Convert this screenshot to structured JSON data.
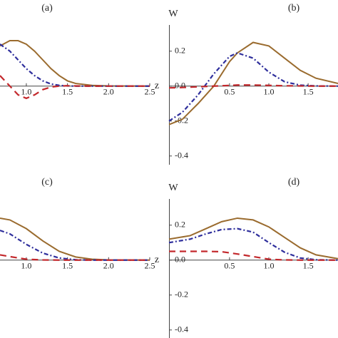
{
  "chart_data": [
    {
      "type": "line",
      "title": "(a)",
      "x_label": "z",
      "x": [
        0.68,
        0.8,
        0.9,
        1.0,
        1.1,
        1.2,
        1.3,
        1.4,
        1.5,
        1.6,
        1.8,
        2.0,
        2.5
      ],
      "xlim": [
        0.68,
        2.5
      ],
      "ylim": [
        -0.45,
        0.35
      ],
      "xticks": [
        {
          "value": 1,
          "label": "1.0"
        },
        1.5,
        {
          "value": 2,
          "label": "2.0"
        },
        2.5
      ],
      "series": [
        {
          "color": "#9a6b2e",
          "linestyle": "solid",
          "values": [
            0.23,
            0.26,
            0.26,
            0.24,
            0.2,
            0.15,
            0.1,
            0.06,
            0.03,
            0.015,
            0.004,
            0.001,
            0
          ]
        },
        {
          "color": "#2e2e9c",
          "linestyle": "dashdot",
          "values": [
            0.24,
            0.2,
            0.15,
            0.1,
            0.06,
            0.03,
            0.012,
            0.004,
            0.001,
            0,
            0,
            0,
            0
          ]
        },
        {
          "color": "#c3282c",
          "linestyle": "dashed",
          "values": [
            0.06,
            0.0,
            -0.05,
            -0.07,
            -0.05,
            -0.02,
            -0.005,
            0,
            0.002,
            0.001,
            0,
            0,
            0
          ]
        }
      ]
    },
    {
      "type": "line",
      "title": "(b)",
      "y_label": "W",
      "x": [
        -0.27,
        -0.1,
        0.1,
        0.3,
        0.5,
        0.6,
        0.8,
        1.0,
        1.2,
        1.4,
        1.6,
        1.88
      ],
      "xlim": [
        -0.27,
        1.88
      ],
      "ylim": [
        -0.45,
        0.35
      ],
      "xticks": [
        0.5,
        {
          "value": 1,
          "label": "1.0"
        },
        1.5
      ],
      "yticks": [
        -0.4,
        -0.2,
        {
          "value": 0,
          "label": "0.0"
        },
        0.2
      ],
      "series": [
        {
          "color": "#9a6b2e",
          "linestyle": "solid",
          "values": [
            -0.22,
            -0.19,
            -0.1,
            0.0,
            0.14,
            0.19,
            0.25,
            0.23,
            0.16,
            0.09,
            0.045,
            0.015
          ]
        },
        {
          "color": "#2e2e9c",
          "linestyle": "dashdot",
          "values": [
            -0.2,
            -0.15,
            -0.05,
            0.07,
            0.17,
            0.19,
            0.16,
            0.08,
            0.025,
            0.005,
            0.001,
            0
          ]
        },
        {
          "color": "#c3282c",
          "linestyle": "dashed",
          "values": [
            -0.01,
            -0.008,
            -0.004,
            0.0,
            0.004,
            0.006,
            0.006,
            0.004,
            0.002,
            0.001,
            0,
            0
          ]
        }
      ]
    },
    {
      "type": "line",
      "title": "(c)",
      "x_label": "z",
      "x": [
        0.68,
        0.8,
        1.0,
        1.2,
        1.4,
        1.6,
        1.8,
        2.0,
        2.5
      ],
      "xlim": [
        0.68,
        2.5
      ],
      "ylim": [
        -0.45,
        0.35
      ],
      "xticks": [
        {
          "value": 1,
          "label": "1.0"
        },
        1.5,
        {
          "value": 2,
          "label": "2.0"
        },
        2.5
      ],
      "series": [
        {
          "color": "#9a6b2e",
          "linestyle": "solid",
          "values": [
            0.24,
            0.23,
            0.18,
            0.11,
            0.05,
            0.018,
            0.005,
            0.001,
            0
          ]
        },
        {
          "color": "#2e2e9c",
          "linestyle": "dashdot",
          "values": [
            0.17,
            0.15,
            0.09,
            0.04,
            0.012,
            0.002,
            0,
            0,
            0
          ]
        },
        {
          "color": "#c3282c",
          "linestyle": "dashed",
          "values": [
            0.03,
            0.02,
            0.005,
            0.001,
            0,
            0,
            0,
            0,
            0
          ]
        }
      ]
    },
    {
      "type": "line",
      "title": "(d)",
      "y_label": "W",
      "x": [
        -0.27,
        0,
        0.2,
        0.4,
        0.6,
        0.8,
        1.0,
        1.2,
        1.4,
        1.6,
        1.88
      ],
      "xlim": [
        -0.27,
        1.88
      ],
      "ylim": [
        -0.45,
        0.35
      ],
      "xticks": [
        0.5,
        {
          "value": 1,
          "label": "1.0"
        },
        1.5
      ],
      "yticks": [
        -0.4,
        -0.2,
        {
          "value": 0,
          "label": "0.0"
        },
        0.2
      ],
      "series": [
        {
          "color": "#9a6b2e",
          "linestyle": "solid",
          "values": [
            0.12,
            0.14,
            0.18,
            0.22,
            0.24,
            0.23,
            0.19,
            0.13,
            0.07,
            0.03,
            0.008
          ]
        },
        {
          "color": "#2e2e9c",
          "linestyle": "dashdot",
          "values": [
            0.1,
            0.12,
            0.15,
            0.175,
            0.18,
            0.16,
            0.1,
            0.045,
            0.012,
            0.002,
            0
          ]
        },
        {
          "color": "#c3282c",
          "linestyle": "dashed",
          "values": [
            0.05,
            0.05,
            0.05,
            0.048,
            0.035,
            0.02,
            0.005,
            0.001,
            0,
            0,
            0
          ]
        }
      ]
    }
  ]
}
